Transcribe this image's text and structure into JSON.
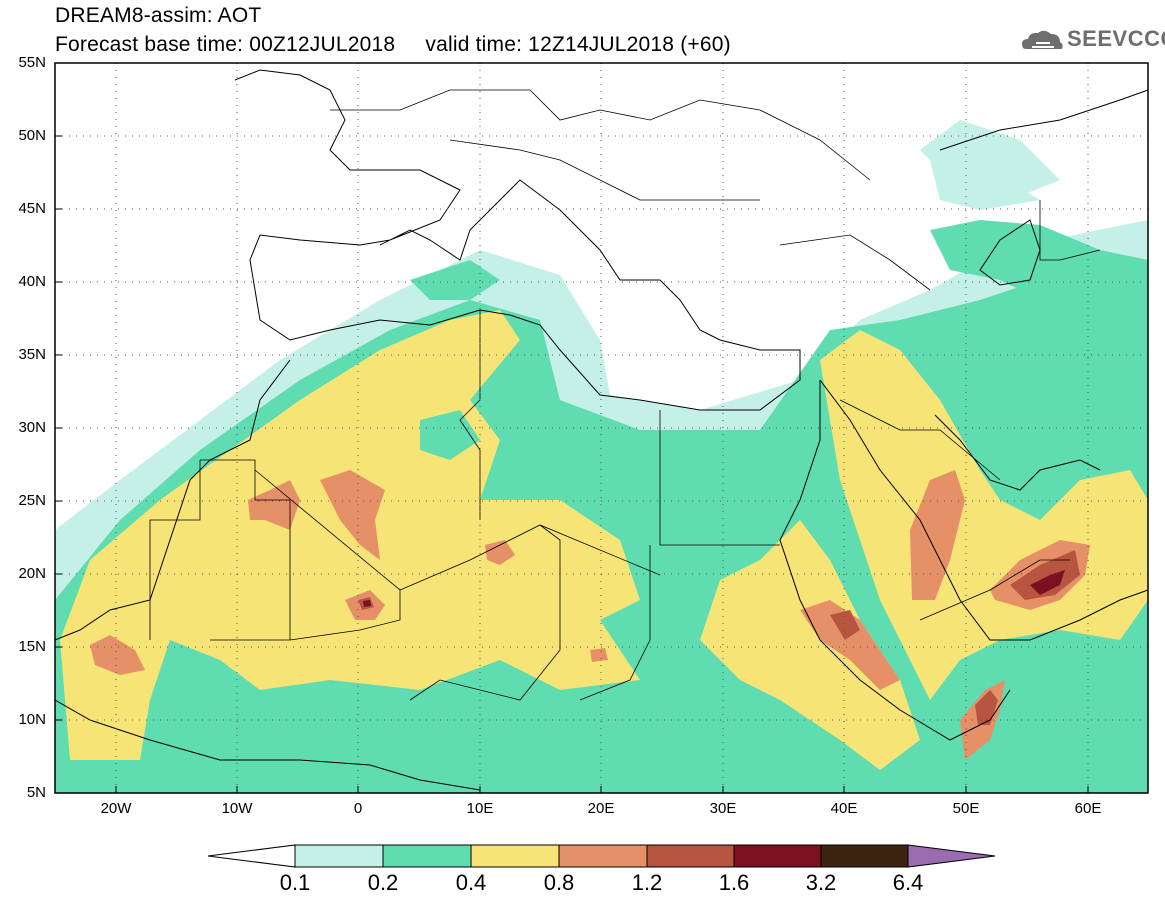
{
  "title": {
    "line1": "DREAM8-assim: AOT",
    "line2": "Forecast base time: 00Z12JUL2018     valid time: 12Z14JUL2018 (+60)"
  },
  "logo": {
    "text": "SEEVCCC",
    "icon": "cloud-icon",
    "color": "#6e6e6e"
  },
  "map": {
    "projection": "cylindrical",
    "lon_range": [
      -25,
      65
    ],
    "lat_range": [
      5,
      55
    ],
    "lat_labels": [
      "55N",
      "50N",
      "45N",
      "40N",
      "35N",
      "30N",
      "25N",
      "20N",
      "15N",
      "10N",
      "5N"
    ],
    "lon_labels": [
      "20W",
      "10W",
      "0",
      "10E",
      "20E",
      "30E",
      "40E",
      "50E",
      "60E"
    ],
    "grid": "dotted",
    "variable": "AOT"
  },
  "colorbar": {
    "labels": [
      "0.1",
      "0.2",
      "0.4",
      "0.8",
      "1.2",
      "1.6",
      "3.2",
      "6.4"
    ],
    "colors": {
      "under": "#ffffff",
      "c1": "#c4f0e8",
      "c2": "#5fdcb0",
      "c3": "#f6e476",
      "c4": "#e69068",
      "c5": "#b75541",
      "c6": "#7a1020",
      "c7": "#3c2410",
      "over": "#9a6cb0"
    }
  }
}
